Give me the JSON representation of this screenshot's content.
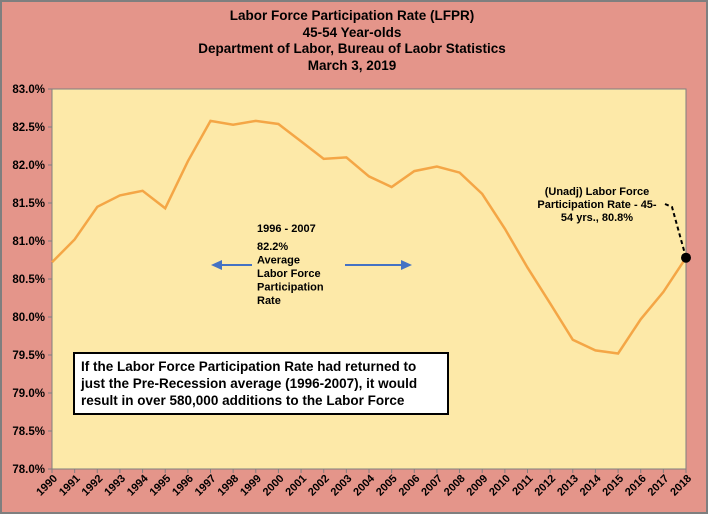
{
  "chart_data": {
    "type": "line",
    "title_lines": [
      "Labor Force Participation Rate (LFPR)",
      "45-54 Year-olds",
      "Department of Labor, Bureau of Laobr Statistics",
      "March 3, 2019"
    ],
    "x": [
      "1990",
      "1991",
      "1992",
      "1993",
      "1994",
      "1995",
      "1996",
      "1997",
      "1998",
      "1999",
      "2000",
      "2001",
      "2002",
      "2003",
      "2004",
      "2005",
      "2006",
      "2007",
      "2008",
      "2009",
      "2010",
      "2011",
      "2012",
      "2013",
      "2014",
      "2015",
      "2016",
      "2017",
      "2018"
    ],
    "series": [
      {
        "values": [
          80.72,
          81.02,
          81.45,
          81.6,
          81.66,
          81.43,
          82.05,
          82.58,
          82.53,
          82.58,
          82.54,
          82.31,
          82.08,
          82.1,
          81.85,
          81.71,
          81.92,
          81.98,
          81.9,
          81.62,
          81.16,
          80.65,
          80.18,
          79.7,
          79.56,
          79.52,
          79.97,
          80.33,
          80.78
        ]
      }
    ],
    "ylim": [
      78.0,
      83.0
    ],
    "yticks": [
      "78.0%",
      "78.5%",
      "79.0%",
      "79.5%",
      "80.0%",
      "80.5%",
      "81.0%",
      "81.5%",
      "82.0%",
      "82.5%",
      "83.0%"
    ],
    "grid": false,
    "line_color": "#f4a646",
    "plot_background": "#fde9a8",
    "frame_background": "#e4958a",
    "annotations": {
      "period_label": "1996 - 2007",
      "average_lines": [
        "82.2%",
        "Average",
        "Labor Force",
        "Participation",
        "Rate"
      ],
      "arrow_color": "#4472c4",
      "endpoint_lines": [
        "(Unadj) Labor Force",
        "Participation Rate - 45-",
        "54 yrs., 80.8%"
      ]
    },
    "note_text": "If the Labor Force Participation Rate had returned to just the Pre-Recession average (1996-2007), it would result in over 580,000 additions to the Labor Force"
  }
}
